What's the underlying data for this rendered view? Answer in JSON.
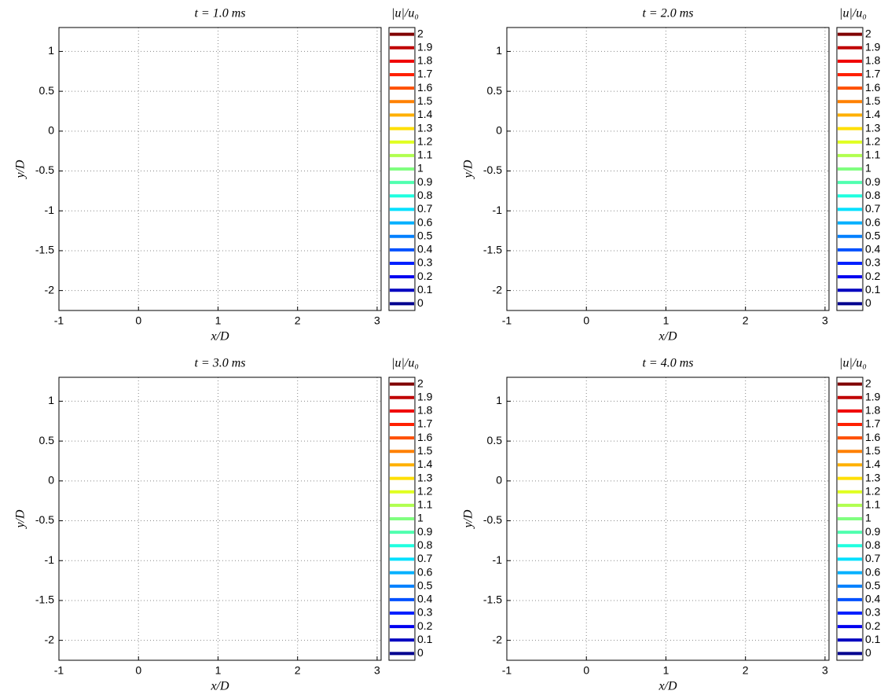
{
  "chart_data": [
    {
      "type": "contour",
      "title": "t = 1.0 ms",
      "x_label": "x/D",
      "y_label": "y/D",
      "xlim": [
        -1,
        3.05
      ],
      "ylim": [
        -2.25,
        1.3
      ],
      "xticks": [
        -1,
        0,
        1,
        2,
        3
      ],
      "yticks": [
        -2,
        -1.5,
        -1,
        -0.5,
        0,
        0.5,
        1
      ],
      "grid": true
    },
    {
      "type": "contour",
      "title": "t = 2.0 ms",
      "x_label": "x/D",
      "y_label": "y/D",
      "xlim": [
        -1,
        3.05
      ],
      "ylim": [
        -2.25,
        1.3
      ],
      "xticks": [
        -1,
        0,
        1,
        2,
        3
      ],
      "yticks": [
        -2,
        -1.5,
        -1,
        -0.5,
        0,
        0.5,
        1
      ],
      "grid": true
    },
    {
      "type": "contour",
      "title": "t = 3.0 ms",
      "x_label": "x/D",
      "y_label": "y/D",
      "xlim": [
        -1,
        3.05
      ],
      "ylim": [
        -2.25,
        1.3
      ],
      "xticks": [
        -1,
        0,
        1,
        2,
        3
      ],
      "yticks": [
        -2,
        -1.5,
        -1,
        -0.5,
        0,
        0.5,
        1
      ],
      "grid": true
    },
    {
      "type": "contour",
      "title": "t = 4.0 ms",
      "x_label": "x/D",
      "y_label": "y/D",
      "xlim": [
        -1,
        3.05
      ],
      "ylim": [
        -2.25,
        1.3
      ],
      "xticks": [
        -1,
        0,
        1,
        2,
        3
      ],
      "yticks": [
        -2,
        -1.5,
        -1,
        -0.5,
        0,
        0.5,
        1
      ],
      "grid": true
    }
  ],
  "colorbar": {
    "label": "|u|/u₀",
    "levels": [
      0,
      0.1,
      0.2,
      0.3,
      0.4,
      0.5,
      0.6,
      0.7,
      0.8,
      0.9,
      1,
      1.1,
      1.2,
      1.3,
      1.4,
      1.5,
      1.6,
      1.7,
      1.8,
      1.9,
      2
    ],
    "colors": [
      "#00008f",
      "#0000c0",
      "#0000f0",
      "#0020ff",
      "#0050ff",
      "#0080ff",
      "#00b0ff",
      "#00e0ff",
      "#20ffdf",
      "#50ffaf",
      "#80ff80",
      "#b0ff50",
      "#e0ff20",
      "#ffdf00",
      "#ffb000",
      "#ff8000",
      "#ff5000",
      "#ff2000",
      "#f00000",
      "#c00000",
      "#800000"
    ]
  }
}
